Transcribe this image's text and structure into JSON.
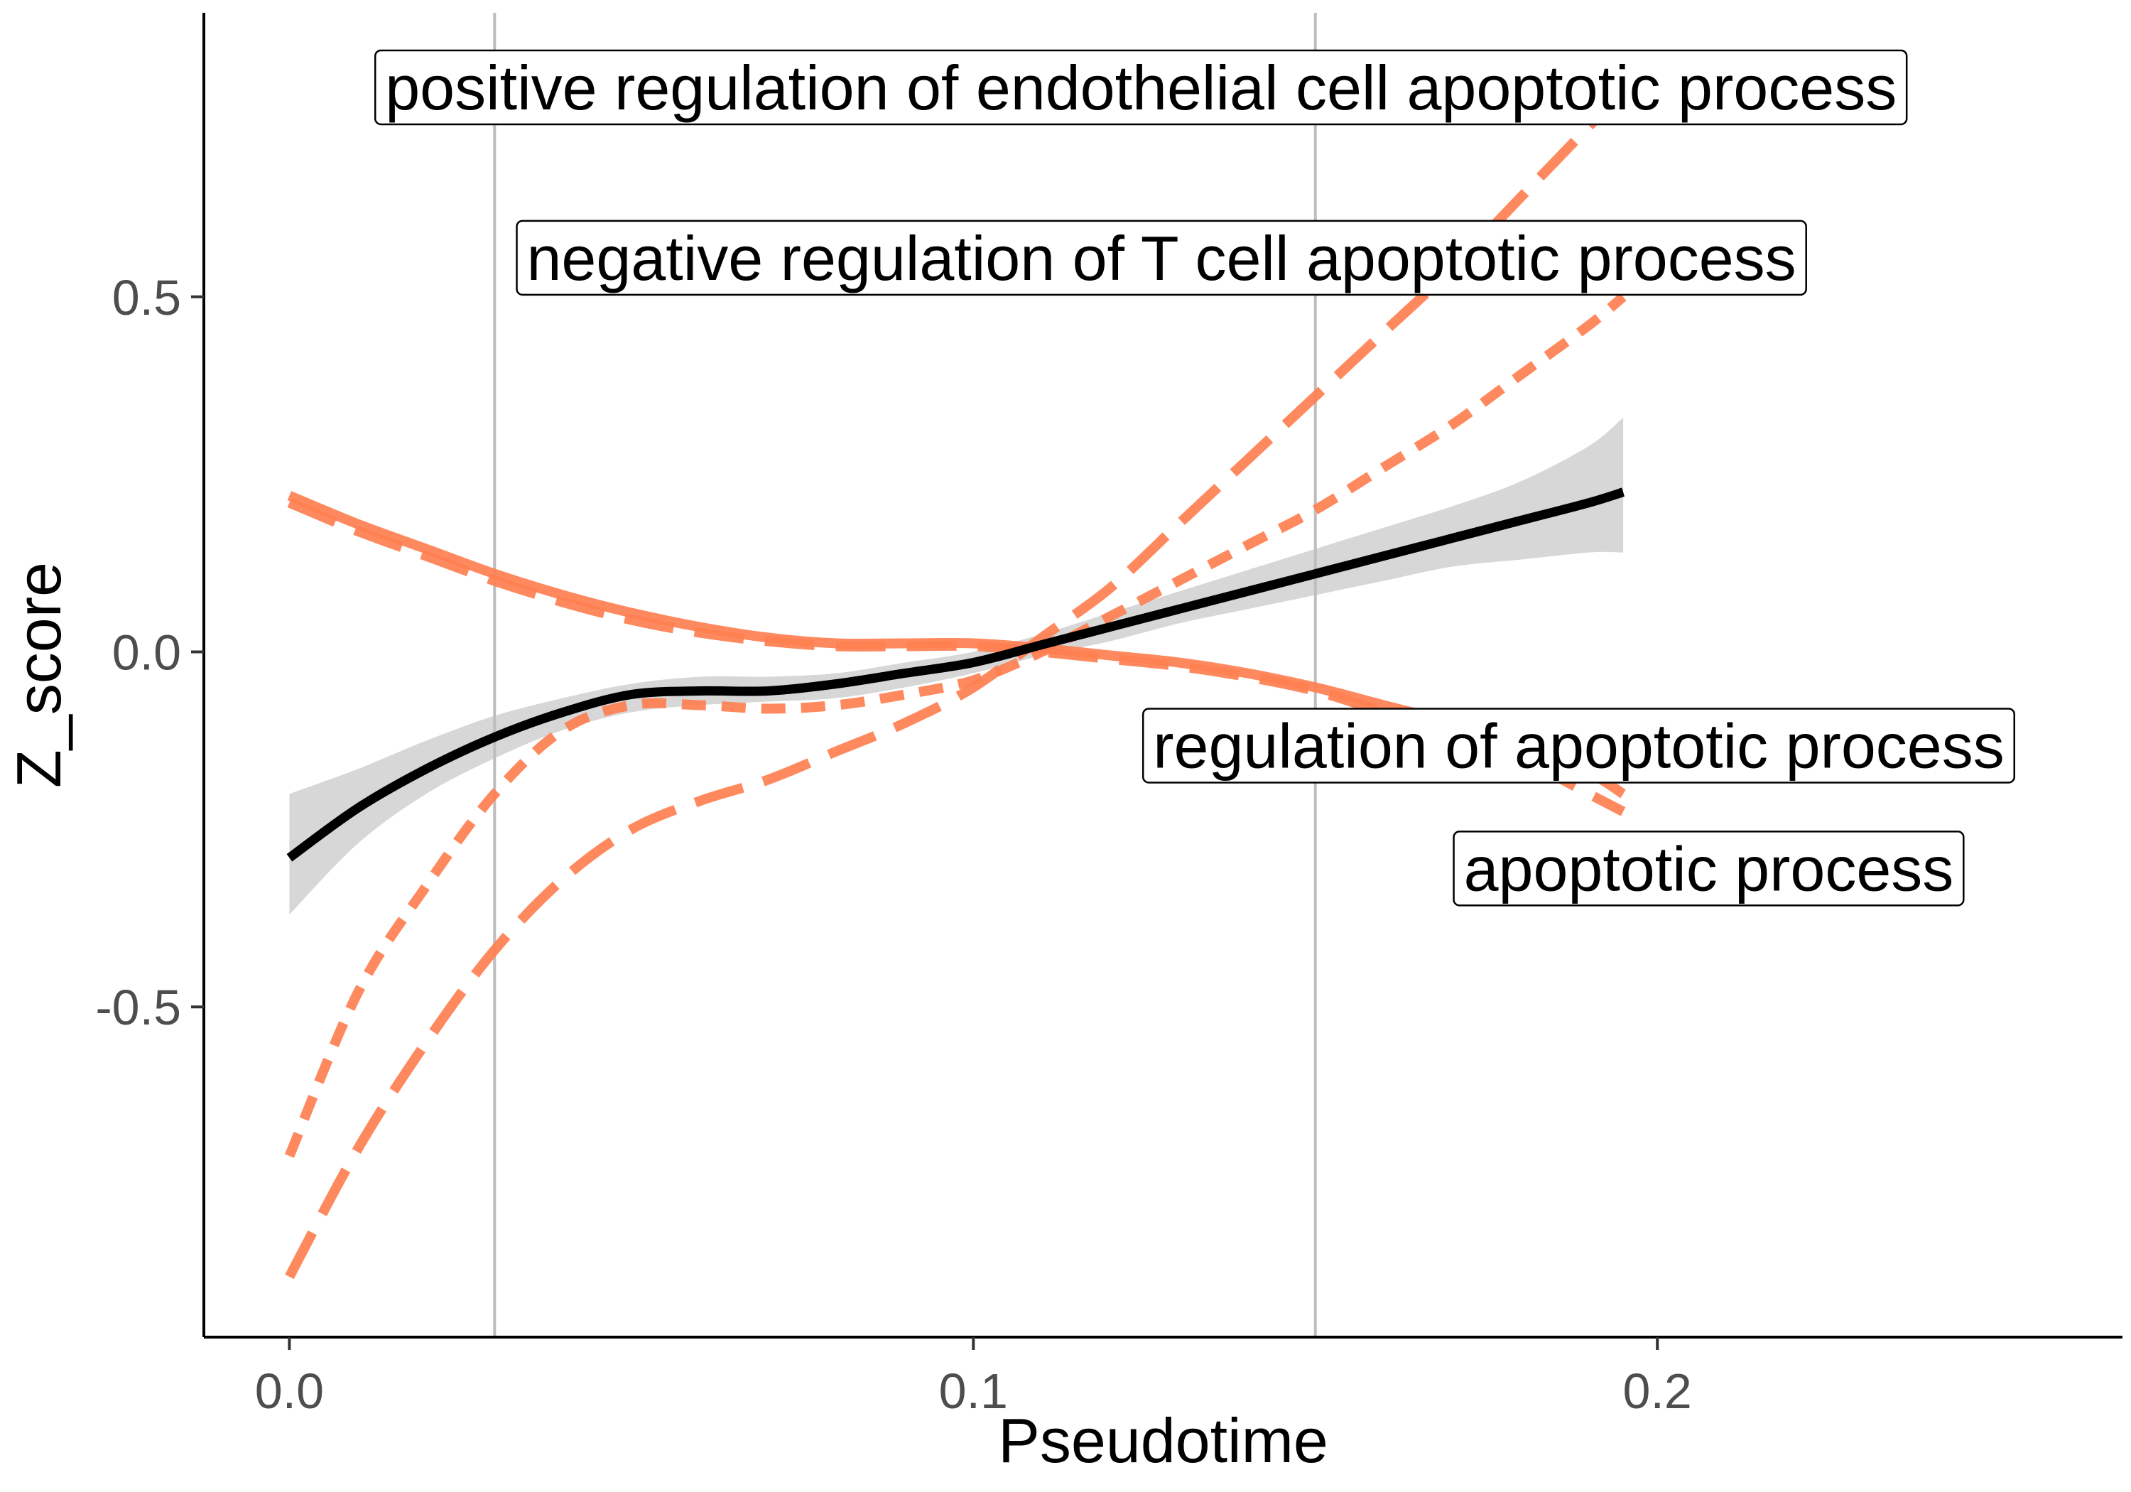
{
  "chart_data": {
    "type": "line",
    "xlabel": "Pseudotime",
    "ylabel": "Z_score",
    "xlim": [
      -0.0125,
      0.268
    ],
    "ylim": [
      -0.965,
      0.9
    ],
    "x_ticks": [
      {
        "value": 0.0,
        "label": "0.0"
      },
      {
        "value": 0.1,
        "label": "0.1"
      },
      {
        "value": 0.2,
        "label": "0.2"
      }
    ],
    "y_ticks": [
      {
        "value": 0.5,
        "label": "0.5"
      },
      {
        "value": 0.0,
        "label": "0.0"
      },
      {
        "value": -0.5,
        "label": "-0.5"
      }
    ],
    "vlines": [
      0.03,
      0.15
    ],
    "vline_color": "#bebebe",
    "grid": false,
    "legend": "none",
    "series": [
      {
        "role": "mean",
        "color": "#000000",
        "style": "solid",
        "x": [
          0.0,
          0.01,
          0.02,
          0.03,
          0.04,
          0.05,
          0.06,
          0.07,
          0.08,
          0.09,
          0.1,
          0.11,
          0.12,
          0.13,
          0.14,
          0.15,
          0.16,
          0.17,
          0.18,
          0.19,
          0.195
        ],
        "y": [
          -0.29,
          -0.22,
          -0.165,
          -0.12,
          -0.085,
          -0.06,
          -0.055,
          -0.055,
          -0.045,
          -0.03,
          -0.015,
          0.01,
          0.035,
          0.06,
          0.085,
          0.11,
          0.135,
          0.16,
          0.185,
          0.21,
          0.225
        ],
        "ci_lower": [
          -0.37,
          -0.27,
          -0.2,
          -0.15,
          -0.11,
          -0.085,
          -0.075,
          -0.07,
          -0.065,
          -0.05,
          -0.03,
          -0.005,
          0.015,
          0.04,
          0.06,
          0.08,
          0.1,
          0.12,
          0.13,
          0.14,
          0.14
        ],
        "ci_upper": [
          -0.2,
          -0.165,
          -0.125,
          -0.09,
          -0.065,
          -0.045,
          -0.035,
          -0.035,
          -0.03,
          -0.015,
          0.0,
          0.025,
          0.055,
          0.085,
          0.115,
          0.145,
          0.175,
          0.205,
          0.24,
          0.29,
          0.33
        ]
      },
      {
        "name": "positive regulation of endothelial cell apoptotic process",
        "color": "#ff7f50",
        "style": "longdash",
        "x": [
          0.0,
          0.01,
          0.02,
          0.03,
          0.04,
          0.05,
          0.06,
          0.07,
          0.08,
          0.09,
          0.1,
          0.11,
          0.12,
          0.13,
          0.14,
          0.15,
          0.16,
          0.17,
          0.18,
          0.19,
          0.195
        ],
        "y": [
          -0.88,
          -0.7,
          -0.55,
          -0.42,
          -0.32,
          -0.25,
          -0.21,
          -0.18,
          -0.14,
          -0.1,
          -0.05,
          0.02,
          0.09,
          0.18,
          0.27,
          0.36,
          0.45,
          0.54,
          0.64,
          0.74,
          0.79
        ]
      },
      {
        "name": "negative regulation of T cell apoptotic process",
        "color": "#ff7f50",
        "style": "dashed",
        "x": [
          0.0,
          0.01,
          0.02,
          0.03,
          0.04,
          0.05,
          0.06,
          0.07,
          0.08,
          0.09,
          0.1,
          0.11,
          0.12,
          0.13,
          0.14,
          0.15,
          0.16,
          0.17,
          0.18,
          0.19,
          0.195
        ],
        "y": [
          -0.71,
          -0.48,
          -0.33,
          -0.2,
          -0.11,
          -0.075,
          -0.075,
          -0.08,
          -0.075,
          -0.06,
          -0.04,
          0.0,
          0.05,
          0.1,
          0.15,
          0.2,
          0.26,
          0.32,
          0.39,
          0.46,
          0.5
        ]
      },
      {
        "name": "regulation of apoptotic process",
        "color": "#ff7f50",
        "style": "solid",
        "x": [
          0.0,
          0.01,
          0.02,
          0.03,
          0.04,
          0.05,
          0.06,
          0.07,
          0.08,
          0.09,
          0.1,
          0.11,
          0.12,
          0.13,
          0.14,
          0.15,
          0.16,
          0.17,
          0.18,
          0.19,
          0.195
        ],
        "y": [
          0.22,
          0.18,
          0.145,
          0.11,
          0.08,
          0.055,
          0.035,
          0.02,
          0.012,
          0.012,
          0.012,
          0.005,
          -0.005,
          -0.015,
          -0.03,
          -0.05,
          -0.075,
          -0.1,
          -0.13,
          -0.17,
          -0.2
        ]
      },
      {
        "name": "apoptotic process",
        "color": "#ff7f50",
        "style": "longdash",
        "x": [
          0.0,
          0.01,
          0.02,
          0.03,
          0.04,
          0.05,
          0.06,
          0.07,
          0.08,
          0.09,
          0.1,
          0.11,
          0.12,
          0.13,
          0.14,
          0.15,
          0.16,
          0.17,
          0.18,
          0.19,
          0.195
        ],
        "y": [
          0.21,
          0.17,
          0.135,
          0.1,
          0.07,
          0.045,
          0.027,
          0.015,
          0.008,
          0.008,
          0.008,
          0.0,
          -0.01,
          -0.02,
          -0.035,
          -0.055,
          -0.085,
          -0.115,
          -0.15,
          -0.2,
          -0.225
        ]
      }
    ],
    "annotations": [
      {
        "label": "positive regulation of endothelial cell apoptotic process",
        "x": 0.1245,
        "y": 0.795
      },
      {
        "label": "negative regulation of T cell apoptotic process",
        "x": 0.1275,
        "y": 0.555
      },
      {
        "label": "regulation of apoptotic process",
        "x": 0.1885,
        "y": -0.132
      },
      {
        "label": "apoptotic process",
        "x": 0.2075,
        "y": -0.305
      }
    ]
  }
}
